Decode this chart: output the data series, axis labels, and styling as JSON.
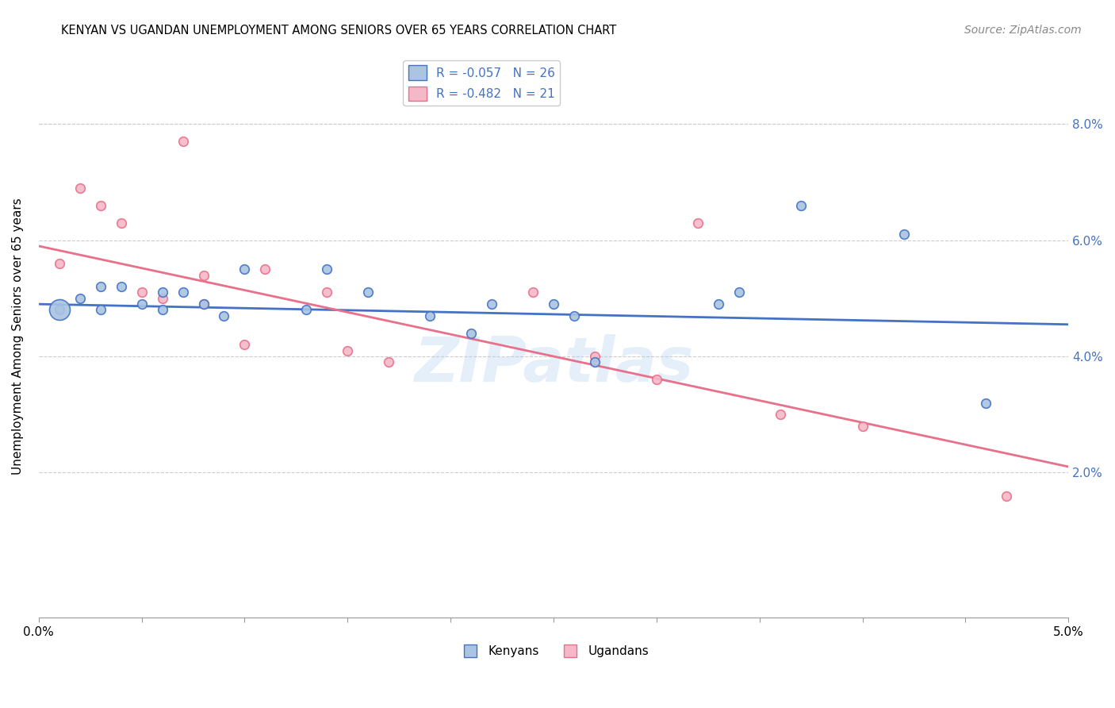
{
  "title": "KENYAN VS UGANDAN UNEMPLOYMENT AMONG SENIORS OVER 65 YEARS CORRELATION CHART",
  "source": "Source: ZipAtlas.com",
  "ylabel": "Unemployment Among Seniors over 65 years",
  "xlim": [
    0.0,
    0.05
  ],
  "ylim": [
    -0.005,
    0.092
  ],
  "xtick_vals": [
    0.0,
    0.005,
    0.01,
    0.015,
    0.02,
    0.025,
    0.03,
    0.035,
    0.04,
    0.045,
    0.05
  ],
  "xtick_labels_show": [
    0.0,
    0.05
  ],
  "ytick_vals": [
    0.02,
    0.04,
    0.06,
    0.08
  ],
  "kenyan_R": "-0.057",
  "kenyan_N": "26",
  "ugandan_R": "-0.482",
  "ugandan_N": "21",
  "kenyan_color": "#aac4e2",
  "ugandan_color": "#f4b8c8",
  "kenyan_line_color": "#4472c4",
  "ugandan_line_color": "#e8708a",
  "legend_text_color": "#4472c4",
  "right_axis_color": "#4472c4",
  "background_color": "#ffffff",
  "kenyan_x": [
    0.001,
    0.002,
    0.003,
    0.003,
    0.004,
    0.005,
    0.006,
    0.006,
    0.007,
    0.008,
    0.009,
    0.01,
    0.013,
    0.014,
    0.016,
    0.019,
    0.021,
    0.022,
    0.025,
    0.026,
    0.027,
    0.033,
    0.034,
    0.037,
    0.042,
    0.046
  ],
  "kenyan_y": [
    0.048,
    0.05,
    0.052,
    0.048,
    0.052,
    0.049,
    0.048,
    0.051,
    0.051,
    0.049,
    0.047,
    0.055,
    0.048,
    0.055,
    0.051,
    0.047,
    0.044,
    0.049,
    0.049,
    0.047,
    0.039,
    0.049,
    0.051,
    0.066,
    0.061,
    0.032
  ],
  "kenyan_x_special": [
    0.001
  ],
  "kenyan_y_special": [
    0.048
  ],
  "kenyan_size_special": 350,
  "ugandan_x": [
    0.001,
    0.002,
    0.003,
    0.004,
    0.005,
    0.006,
    0.007,
    0.008,
    0.008,
    0.01,
    0.011,
    0.014,
    0.015,
    0.017,
    0.024,
    0.027,
    0.03,
    0.032,
    0.036,
    0.04,
    0.047
  ],
  "ugandan_y": [
    0.056,
    0.069,
    0.066,
    0.063,
    0.051,
    0.05,
    0.077,
    0.049,
    0.054,
    0.042,
    0.055,
    0.051,
    0.041,
    0.039,
    0.051,
    0.04,
    0.036,
    0.063,
    0.03,
    0.028,
    0.016
  ],
  "kenyan_line_x": [
    0.0,
    0.05
  ],
  "kenyan_line_y": [
    0.049,
    0.0455
  ],
  "ugandan_line_x": [
    0.0,
    0.05
  ],
  "ugandan_line_y": [
    0.059,
    0.021
  ],
  "watermark": "ZIPatlas",
  "dot_size": 70
}
